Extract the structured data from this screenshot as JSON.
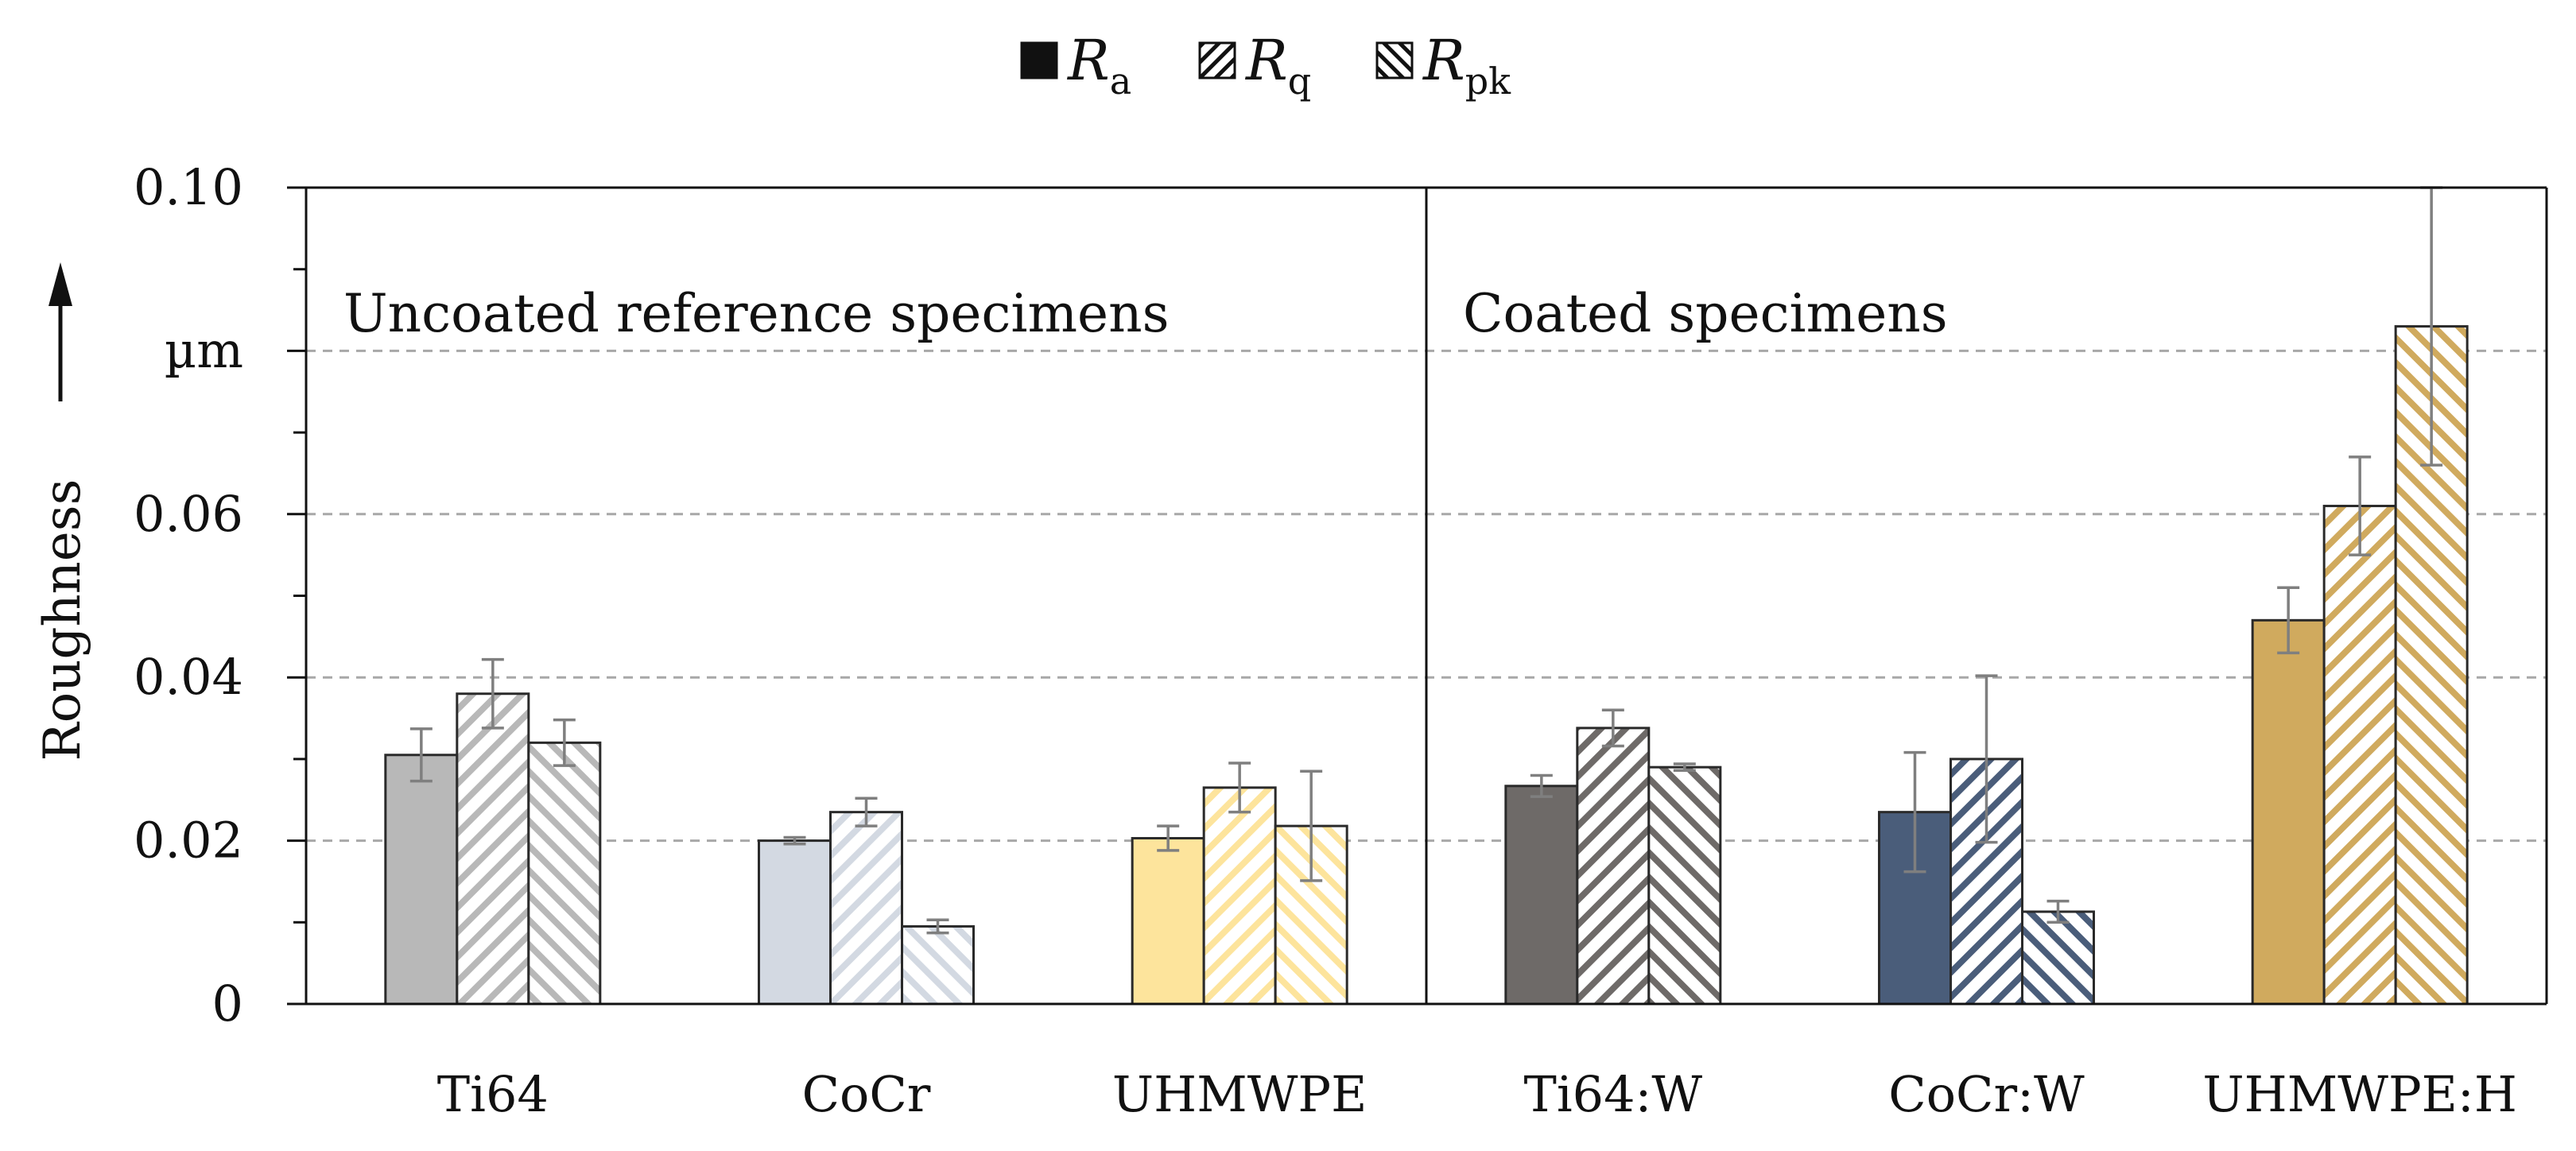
{
  "chart_data": {
    "type": "bar",
    "title": "",
    "xlabel": "",
    "ylabel": "Roughness",
    "yunit": "µm",
    "ylim": [
      0,
      0.1
    ],
    "yticks": [
      {
        "value": 0,
        "label": "0"
      },
      {
        "value": 0.02,
        "label": "0.02"
      },
      {
        "value": 0.04,
        "label": "0.04"
      },
      {
        "value": 0.06,
        "label": "0.06"
      },
      {
        "value": 0.1,
        "label": "0.10"
      }
    ],
    "grid": true,
    "legend_position": "top-center",
    "categories": [
      "Ti64",
      "CoCr",
      "UHMWPE",
      "Ti64:W",
      "CoCr:W",
      "UHMWPE:H"
    ],
    "category_colors": [
      "#b8b8b8",
      "#d3d9e2",
      "#fde49c",
      "#6e6a68",
      "#4a5d7a",
      "#d0aa5e"
    ],
    "groups": [
      {
        "label": "Uncoated reference specimens",
        "categories": [
          "Ti64",
          "CoCr",
          "UHMWPE"
        ]
      },
      {
        "label": "Coated specimens",
        "categories": [
          "Ti64:W",
          "CoCr:W",
          "UHMWPE:H"
        ]
      }
    ],
    "series": [
      {
        "name": "R",
        "subscript": "a",
        "pattern": "solid",
        "values": [
          0.0305,
          0.02,
          0.0203,
          0.0267,
          0.0235,
          0.047
        ],
        "errors": [
          0.0032,
          0.0004,
          0.0015,
          0.0013,
          0.0073,
          0.004
        ]
      },
      {
        "name": "R",
        "subscript": "q",
        "pattern": "hatch-forward",
        "values": [
          0.038,
          0.0235,
          0.0265,
          0.0338,
          0.03,
          0.061
        ],
        "errors": [
          0.0042,
          0.0017,
          0.003,
          0.0022,
          0.0102,
          0.006
        ]
      },
      {
        "name": "R",
        "subscript": "pk",
        "pattern": "hatch-backward",
        "values": [
          0.032,
          0.0095,
          0.0218,
          0.029,
          0.0113,
          0.083
        ],
        "errors": [
          0.0028,
          0.0008,
          0.0067,
          0.0004,
          0.0013,
          0.017
        ]
      }
    ]
  }
}
